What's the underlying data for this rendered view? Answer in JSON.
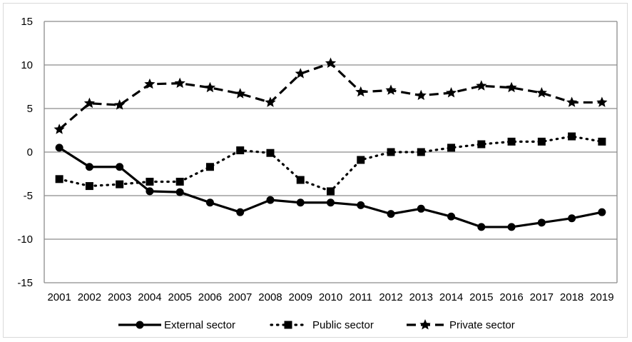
{
  "chart_data": {
    "type": "line",
    "title": "",
    "xlabel": "",
    "ylabel": "",
    "ylim": [
      -15,
      15
    ],
    "yticks": [
      15,
      10,
      5,
      0,
      -5,
      -10,
      -15
    ],
    "grid": true,
    "legend_position": "bottom",
    "categories": [
      "2001",
      "2002",
      "2003",
      "2004",
      "2005",
      "2006",
      "2007",
      "2008",
      "2009",
      "2010",
      "2011",
      "2012",
      "2013",
      "2014",
      "2015",
      "2016",
      "2017",
      "2018",
      "2019"
    ],
    "series": [
      {
        "name": "External sector",
        "style": "solid",
        "marker": "circle",
        "color": "#000000",
        "values": [
          0.5,
          -1.7,
          -1.7,
          -4.5,
          -4.6,
          -5.8,
          -6.9,
          -5.5,
          -5.8,
          -5.8,
          -6.1,
          -7.1,
          -6.5,
          -7.4,
          -8.6,
          -8.6,
          -8.1,
          -7.6,
          -6.9
        ]
      },
      {
        "name": "Public sector",
        "style": "dotted",
        "marker": "square",
        "color": "#000000",
        "values": [
          -3.1,
          -3.9,
          -3.7,
          -3.4,
          -3.4,
          -1.7,
          0.2,
          -0.1,
          -3.2,
          -4.5,
          -0.9,
          0.0,
          0.0,
          0.5,
          0.9,
          1.2,
          1.2,
          1.8,
          1.2
        ]
      },
      {
        "name": "Private sector",
        "style": "dashed",
        "marker": "star",
        "color": "#000000",
        "values": [
          2.6,
          5.6,
          5.4,
          7.8,
          7.9,
          7.4,
          6.7,
          5.7,
          9.0,
          10.2,
          6.9,
          7.1,
          6.5,
          6.8,
          7.6,
          7.4,
          6.8,
          5.7,
          5.7
        ]
      }
    ]
  }
}
